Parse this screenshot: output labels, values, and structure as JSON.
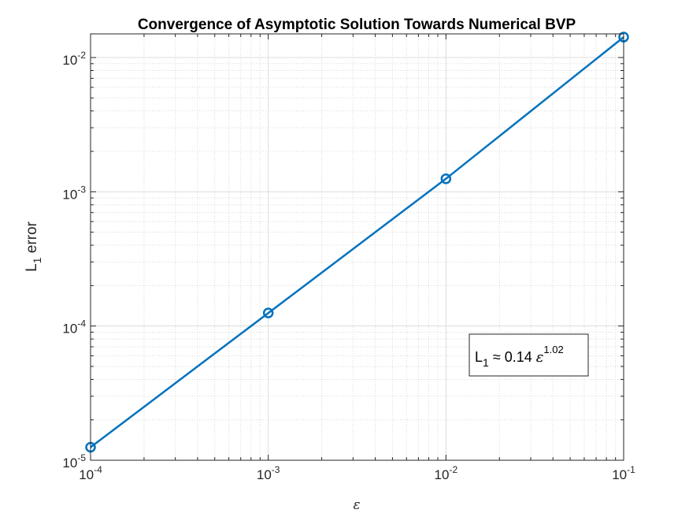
{
  "chart_data": {
    "type": "line",
    "title": "Convergence of Asymptotic Solution Towards Numerical BVP",
    "xlabel": "ε",
    "ylabel": {
      "base": "L",
      "sub": "1",
      "rest": " error"
    },
    "x_scale": "log",
    "y_scale": "log",
    "xlim": [
      0.0001,
      0.1
    ],
    "ylim": [
      1e-05,
      0.015
    ],
    "grid": true,
    "minor_grid": true,
    "x_ticks": [
      {
        "base": "10",
        "exp": "-4"
      },
      {
        "base": "10",
        "exp": "-3"
      },
      {
        "base": "10",
        "exp": "-2"
      },
      {
        "base": "10",
        "exp": "-1"
      }
    ],
    "y_ticks": [
      {
        "base": "10",
        "exp": "-5"
      },
      {
        "base": "10",
        "exp": "-4"
      },
      {
        "base": "10",
        "exp": "-3"
      },
      {
        "base": "10",
        "exp": "-2"
      }
    ],
    "series": [
      {
        "color": "#0072BD",
        "marker": "circle",
        "x": [
          0.0001,
          0.001,
          0.01,
          0.1
        ],
        "y": [
          1.25e-05,
          0.000125,
          0.00125,
          0.0142
        ]
      }
    ],
    "annotation": {
      "base": "L",
      "sub": "1",
      "middle": " ≈ 0.14 ",
      "var": "ε",
      "exp": "1.02"
    }
  }
}
